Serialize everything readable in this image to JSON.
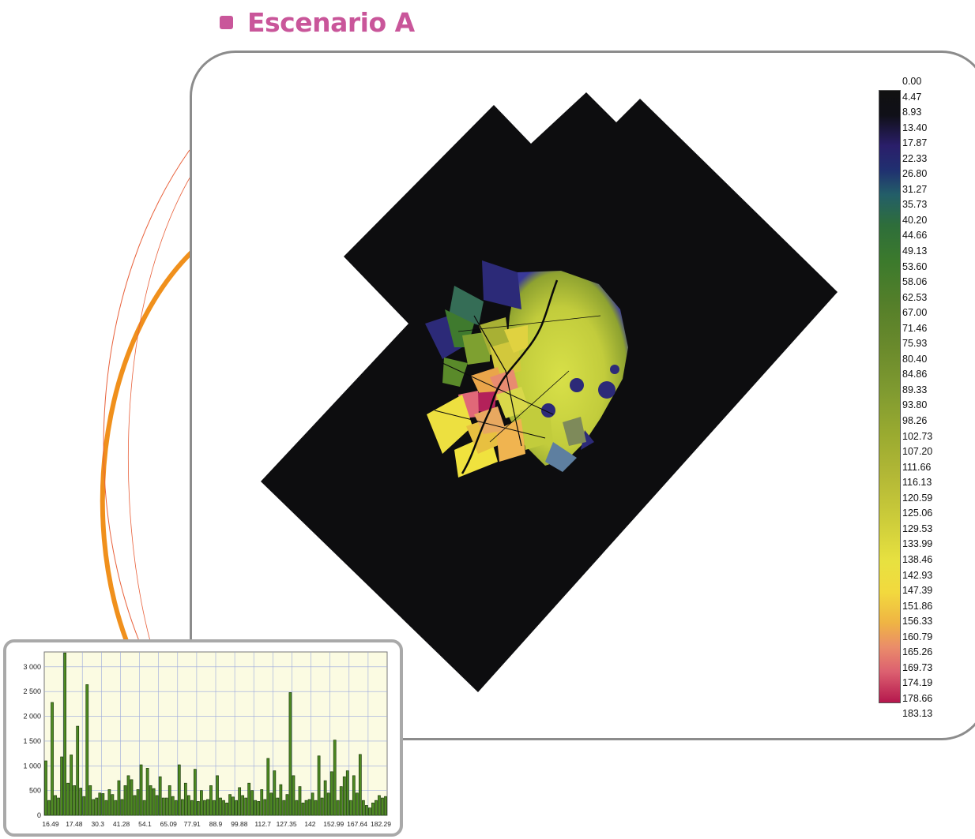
{
  "title": "Escenario A",
  "colors": {
    "title": "#c9569a",
    "panel_border": "#8c8c8c",
    "arc_thick": "#f0901c",
    "arc_thin": "#e8603a",
    "map_background": "#0d0d0f",
    "histogram_bars": "#4e8a22",
    "histogram_background": "#fbfbe2",
    "histogram_grid": "#9aa8dd"
  },
  "legend": {
    "labels": [
      "0.00",
      "4.47",
      "8.93",
      "13.40",
      "17.87",
      "22.33",
      "26.80",
      "31.27",
      "35.73",
      "40.20",
      "44.66",
      "49.13",
      "53.60",
      "58.06",
      "62.53",
      "67.00",
      "71.46",
      "75.93",
      "80.40",
      "84.86",
      "89.33",
      "93.80",
      "98.26",
      "102.73",
      "107.20",
      "111.66",
      "116.13",
      "120.59",
      "125.06",
      "129.53",
      "133.99",
      "138.46",
      "142.93",
      "147.39",
      "151.86",
      "156.33",
      "160.79",
      "165.26",
      "169.73",
      "174.19",
      "178.66",
      "183.13"
    ]
  },
  "chart_data": {
    "type": "bar",
    "ylim": [
      0,
      3300
    ],
    "y_ticks": [
      "3 000",
      "2 500",
      "2 000",
      "1 500",
      "1 000",
      "500",
      "0"
    ],
    "x_tick_labels": [
      "16.49",
      "17.48",
      "30.3",
      "41.28",
      "54.1",
      "65.09",
      "77.91",
      "88.9",
      "99.88",
      "112.7",
      "127.35",
      "142",
      "152.99",
      "167.64",
      "182.29"
    ],
    "values": [
      1100,
      300,
      2280,
      400,
      350,
      1180,
      3280,
      650,
      1220,
      600,
      1800,
      550,
      380,
      2640,
      600,
      320,
      350,
      450,
      440,
      300,
      520,
      420,
      300,
      700,
      320,
      600,
      800,
      720,
      400,
      520,
      1020,
      300,
      950,
      600,
      540,
      400,
      780,
      350,
      350,
      600,
      380,
      300,
      1020,
      320,
      650,
      400,
      300,
      930,
      280,
      500,
      300,
      320,
      600,
      300,
      800,
      350,
      300,
      250,
      420,
      370,
      300,
      560,
      400,
      350,
      650,
      500,
      300,
      280,
      520,
      320,
      1150,
      450,
      900,
      350,
      620,
      300,
      420,
      2480,
      800,
      300,
      580,
      250,
      300,
      320,
      450,
      300,
      1200,
      350,
      700,
      450,
      880,
      1520,
      300,
      580,
      780,
      900,
      300,
      800,
      450,
      1230,
      300,
      200,
      150,
      250,
      300,
      400,
      350,
      380
    ]
  },
  "map": {
    "figure": "choropleth-map",
    "polygons": 34
  }
}
